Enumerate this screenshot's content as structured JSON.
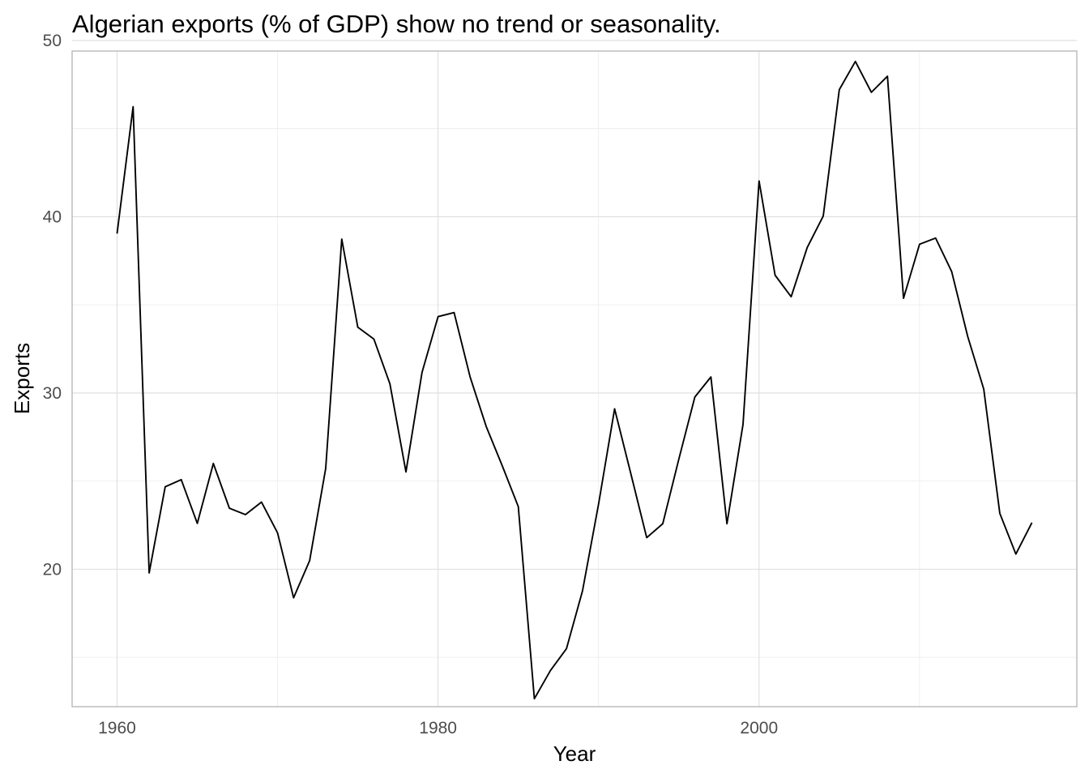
{
  "chart_data": {
    "type": "line",
    "title": "Algerian exports (% of GDP) show no trend or seasonality.",
    "xlabel": "Year",
    "ylabel": "Exports",
    "xlim": [
      1957.2,
      2019.8
    ],
    "ylim": [
      12.2,
      49.4
    ],
    "xticks": [
      1960,
      1980,
      2000
    ],
    "xtick_labels": [
      "1960",
      "1980",
      "2000"
    ],
    "yticks": [
      20,
      30,
      40,
      50
    ],
    "ytick_labels": [
      "20",
      "30",
      "40",
      "50"
    ],
    "x_minor_gridlines": [
      1970,
      1990,
      2010
    ],
    "y_minor_gridlines": [
      15,
      25,
      35,
      45
    ],
    "grid": true,
    "legend": "none",
    "line_color": "#000000",
    "series": [
      {
        "x": [
          1960,
          1961,
          1962,
          1963,
          1964,
          1965,
          1966,
          1967,
          1968,
          1969,
          1970,
          1971,
          1972,
          1973,
          1974,
          1975,
          1976,
          1977,
          1978,
          1979,
          1980,
          1981,
          1982,
          1983,
          1984,
          1985,
          1986,
          1987,
          1988,
          1989,
          1990,
          1991,
          1992,
          1993,
          1994,
          1995,
          1996,
          1997,
          1998,
          1999,
          2000,
          2001,
          2002,
          2003,
          2004,
          2005,
          2006,
          2007,
          2008,
          2009,
          2010,
          2011,
          2012,
          2013,
          2014,
          2015,
          2016,
          2017
        ],
        "values": [
          39.04,
          46.24,
          19.79,
          24.68,
          25.08,
          22.6,
          26.0,
          23.46,
          23.1,
          23.81,
          22.06,
          18.38,
          20.49,
          25.72,
          38.73,
          33.73,
          33.06,
          30.52,
          25.52,
          31.16,
          34.33,
          34.56,
          30.9,
          28.1,
          25.87,
          23.55,
          12.65,
          14.25,
          15.49,
          18.77,
          23.69,
          29.1,
          25.46,
          21.79,
          22.58,
          26.24,
          29.77,
          30.91,
          22.58,
          28.21,
          42.03,
          36.68,
          35.46,
          38.25,
          40.04,
          47.21,
          48.81,
          47.06,
          47.97,
          35.37,
          38.44,
          38.79,
          36.89,
          33.21,
          30.22,
          23.17,
          20.86,
          22.64
        ]
      }
    ]
  }
}
